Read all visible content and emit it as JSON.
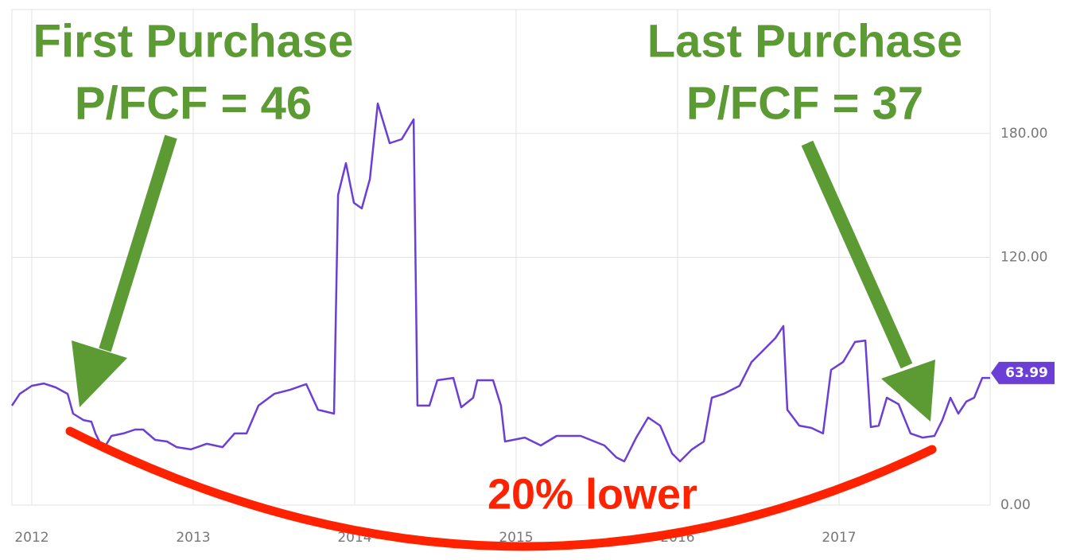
{
  "chart_data": {
    "type": "line",
    "annotations": [
      "First Purchase",
      "P/FCF = 46",
      "Last Purchase",
      "P/FCF = 37",
      "20% lower"
    ],
    "x": [
      2011.877,
      2011.926,
      2012.0,
      2012.074,
      2012.148,
      2012.222,
      2012.256,
      2012.32,
      2012.369,
      2012.394,
      2012.443,
      2012.493,
      2012.567,
      2012.64,
      2012.69,
      2012.764,
      2012.837,
      2012.897,
      2012.985,
      2013.084,
      2013.182,
      2013.256,
      2013.33,
      2013.404,
      2013.502,
      2013.601,
      2013.7,
      2013.773,
      2013.872,
      2013.897,
      2013.946,
      2013.995,
      2014.044,
      2014.094,
      2014.143,
      2014.217,
      2014.291,
      2014.365,
      2014.389,
      2014.463,
      2014.512,
      2014.611,
      2014.66,
      2014.734,
      2014.759,
      2014.857,
      2014.906,
      2014.931,
      2015.054,
      2015.153,
      2015.251,
      2015.399,
      2015.547,
      2015.621,
      2015.67,
      2015.744,
      2015.818,
      2015.892,
      2015.966,
      2016.015,
      2016.089,
      2016.163,
      2016.212,
      2016.286,
      2016.384,
      2016.458,
      2016.532,
      2016.606,
      2016.655,
      2016.68,
      2016.754,
      2016.828,
      2016.901,
      2016.951,
      2017.025,
      2017.099,
      2017.163,
      2017.197,
      2017.246,
      2017.296,
      2017.369,
      2017.443,
      2017.517,
      2017.591,
      2017.64,
      2017.69,
      2017.739,
      2017.788,
      2017.837,
      2017.887,
      2017.936
    ],
    "series": [
      {
        "color": "#6b3fd6",
        "values": [
          48.2,
          53.9,
          57.8,
          58.9,
          57.0,
          53.9,
          44.3,
          41.2,
          40.4,
          34.7,
          27.0,
          33.5,
          34.7,
          36.6,
          36.6,
          31.6,
          30.8,
          28.1,
          27.0,
          29.7,
          28.1,
          34.7,
          34.7,
          48.2,
          53.9,
          55.9,
          58.6,
          46.2,
          44.3,
          150.2,
          165.6,
          146.4,
          143.7,
          157.9,
          194.5,
          175.3,
          177.2,
          186.8,
          48.2,
          48.2,
          60.5,
          61.6,
          47.4,
          52.0,
          60.5,
          60.5,
          48.2,
          30.8,
          32.7,
          28.9,
          33.5,
          33.5,
          28.9,
          23.1,
          21.2,
          32.7,
          42.4,
          38.5,
          25.0,
          21.2,
          27.0,
          30.8,
          52.0,
          53.9,
          57.8,
          69.3,
          75.1,
          80.9,
          86.7,
          46.2,
          38.5,
          37.4,
          34.7,
          65.5,
          69.3,
          79.0,
          79.7,
          37.8,
          38.5,
          52.0,
          48.9,
          34.7,
          32.7,
          33.5,
          41.2,
          52.0,
          44.3,
          50.1,
          52.0,
          61.6,
          61.6
        ]
      }
    ],
    "last_value": 63.99,
    "last_value_color": "#6b3fd6",
    "xlim": [
      2011.877,
      2017.936
    ],
    "xticks": [
      2012,
      2013,
      2014,
      2015,
      2016,
      2017
    ],
    "ylim": [
      0,
      240
    ],
    "yticks": [
      {
        "value": 0,
        "label": "0.00"
      },
      {
        "value": 60,
        "label": null
      },
      {
        "value": 120,
        "label": "120.00"
      },
      {
        "value": 180,
        "label": "180.00"
      }
    ],
    "grid": true
  }
}
